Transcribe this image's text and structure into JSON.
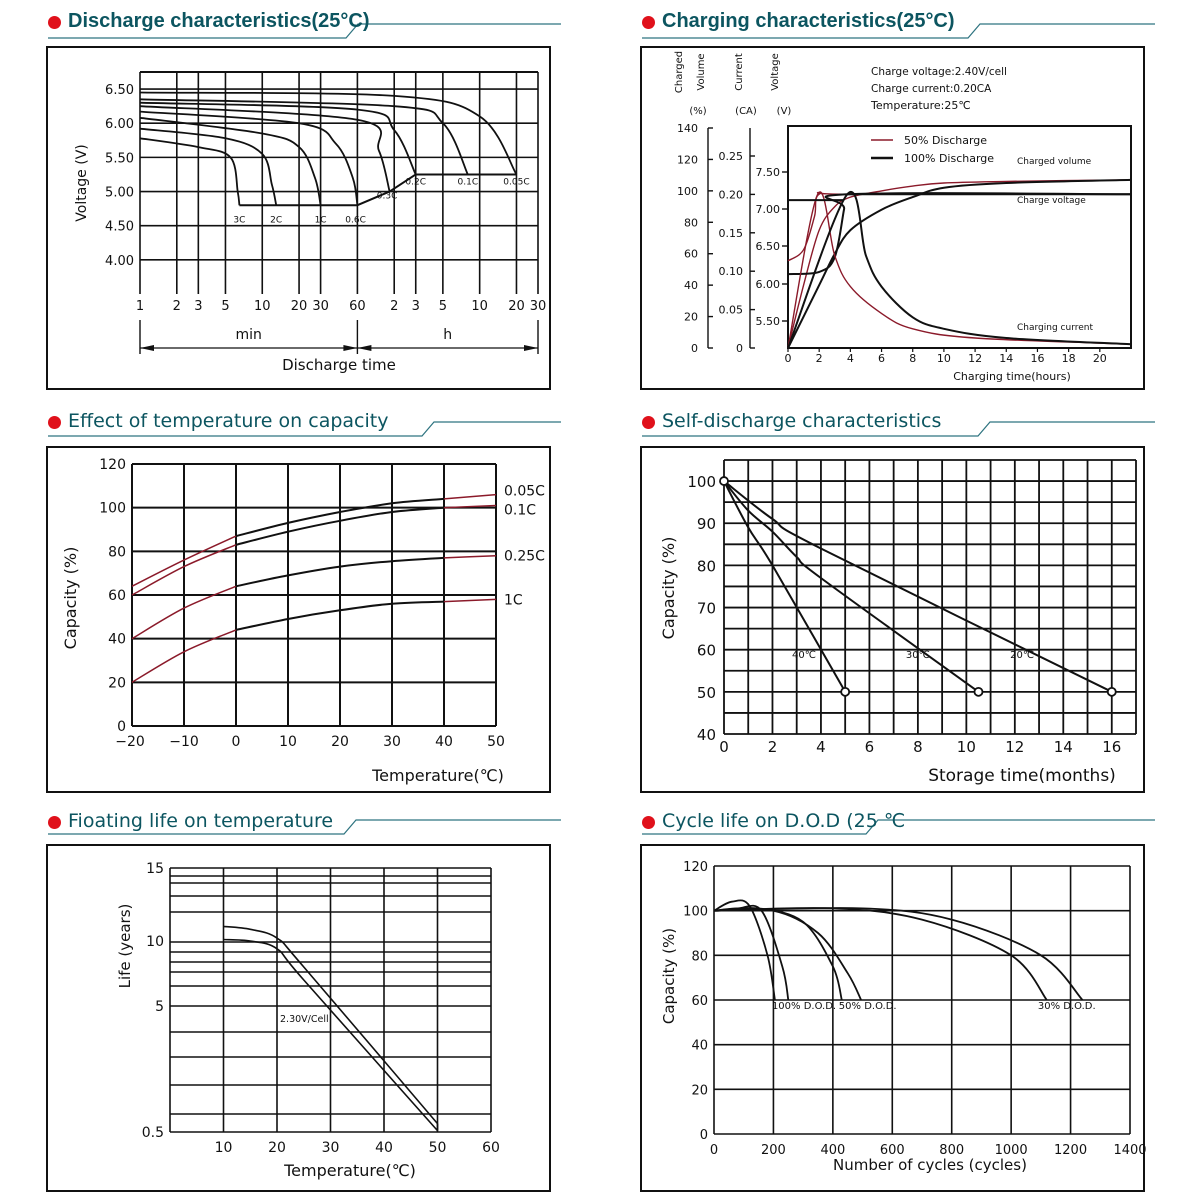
{
  "colors": {
    "bullet": "#e0111b",
    "title": "#0c5560",
    "rule": "#2e7480",
    "grid": "#111111",
    "red_curve": "#8b1a2a",
    "black_curve": "#111111"
  },
  "panels": [
    {
      "title": "Discharge characteristics(25°C)"
    },
    {
      "title": "Charging characteristics(25°C)"
    },
    {
      "title": "Effect of temperature on capacity"
    },
    {
      "title": "Self-discharge characteristics"
    },
    {
      "title": "Fioating life on temperature"
    },
    {
      "title": "Cycle life on D.O.D (25 ℃"
    }
  ],
  "chart_data": [
    {
      "type": "line",
      "title": "Discharge characteristics(25°C)",
      "xlabel": "Discharge time",
      "ylabel": "Voltage (V)",
      "x_scale": "log",
      "x_unit_labels": [
        "min",
        "h"
      ],
      "x_ticks_min": [
        "1",
        "2",
        "3",
        "5",
        "10",
        "20",
        "30",
        "60"
      ],
      "x_ticks_h": [
        "2",
        "3",
        "5",
        "10",
        "20",
        "30"
      ],
      "y_ticks": [
        "6.50",
        "6.00",
        "5.50",
        "5.00",
        "4.50",
        "4.00"
      ],
      "ylim": [
        3.5,
        6.75
      ],
      "series": [
        {
          "name": "3C",
          "end_voltage": 4.8,
          "points_min": [
            [
              1,
              5.78
            ],
            [
              3,
              5.65
            ],
            [
              5.5,
              5.5
            ],
            [
              6.3,
              5.0
            ],
            [
              6.5,
              4.8
            ]
          ]
        },
        {
          "name": "2C",
          "end_voltage": 4.8,
          "points_min": [
            [
              1,
              5.92
            ],
            [
              5,
              5.78
            ],
            [
              10,
              5.55
            ],
            [
              12,
              5.1
            ],
            [
              13,
              4.8
            ]
          ]
        },
        {
          "name": "1C",
          "end_voltage": 4.8,
          "points_min": [
            [
              1,
              6.08
            ],
            [
              10,
              5.85
            ],
            [
              20,
              5.65
            ],
            [
              27,
              5.2
            ],
            [
              30,
              4.8
            ]
          ]
        },
        {
          "name": "0.6C",
          "end_voltage": 4.8,
          "points_min": [
            [
              1,
              6.17
            ],
            [
              20,
              6.0
            ],
            [
              40,
              5.7
            ],
            [
              55,
              5.2
            ],
            [
              60,
              4.8
            ]
          ]
        },
        {
          "name": "0.3C",
          "end_voltage": 5.0,
          "points_min": [
            [
              1,
              6.25
            ],
            [
              60,
              6.05
            ],
            [
              90,
              5.6
            ],
            [
              110,
              5.0
            ]
          ]
        },
        {
          "name": "0.2C",
          "end_voltage": 5.25,
          "points_min": [
            [
              1,
              6.3
            ],
            [
              60,
              6.2
            ],
            [
              120,
              5.9
            ],
            [
              180,
              5.25
            ]
          ]
        },
        {
          "name": "0.1C",
          "end_voltage": 5.25,
          "points_min": [
            [
              1,
              6.35
            ],
            [
              120,
              6.25
            ],
            [
              300,
              6.0
            ],
            [
              480,
              5.25
            ]
          ]
        },
        {
          "name": "0.05C",
          "end_voltage": 5.25,
          "points_min": [
            [
              1,
              6.45
            ],
            [
              120,
              6.4
            ],
            [
              600,
              6.1
            ],
            [
              1200,
              5.25
            ]
          ]
        }
      ]
    },
    {
      "type": "line",
      "title": "Charging characteristics(25°C)",
      "xlabel": "Charging time(hours)",
      "x_ticks": [
        "0",
        "2",
        "4",
        "6",
        "8",
        "10",
        "12",
        "14",
        "16",
        "18",
        "20"
      ],
      "xlim": [
        0,
        22
      ],
      "axes": [
        {
          "label": "Charged Volume",
          "unit": "(%)",
          "ticks": [
            "140",
            "120",
            "100",
            "80",
            "60",
            "40",
            "20",
            "0"
          ],
          "range": [
            0,
            140
          ]
        },
        {
          "label": "Current",
          "unit": "(CA)",
          "ticks": [
            "0.25",
            "0.20",
            "0.15",
            "0.10",
            "0.05",
            "0"
          ],
          "range": [
            0,
            0.25
          ]
        },
        {
          "label": "Voltage",
          "unit": "(V)",
          "ticks": [
            "7.50",
            "7.00",
            "6.50",
            "6.00",
            "5.50"
          ]
        }
      ],
      "notes": [
        "Charge voltage:2.40V/cell",
        "Charge current:0.20CA",
        "Temperature:25℃"
      ],
      "legend": [
        {
          "name": "50% Discharge",
          "color": "#8b1a2a"
        },
        {
          "name": "100% Discharge",
          "color": "#111111"
        }
      ],
      "curve_labels": [
        "Charged volume",
        "Charge voltage",
        "Charging current"
      ],
      "series": [
        {
          "name": "50% Discharge - Charged volume",
          "x": [
            0,
            1,
            2,
            3,
            4,
            6,
            8,
            10,
            14,
            22
          ],
          "y": [
            0,
            40,
            75,
            90,
            96,
            100,
            103,
            105,
            106,
            107
          ]
        },
        {
          "name": "100% Discharge - Charged volume",
          "x": [
            0,
            2,
            3,
            4,
            6,
            8,
            10,
            14,
            22
          ],
          "y": [
            0,
            40,
            60,
            75,
            88,
            96,
            102,
            105,
            107
          ]
        },
        {
          "name": "50% Discharge - Charge voltage",
          "x": [
            0,
            1,
            1.7,
            2,
            4,
            22
          ],
          "y": [
            6.3,
            6.45,
            6.9,
            7.2,
            7.2,
            7.2
          ]
        },
        {
          "name": "100% Discharge - Charge voltage",
          "x": [
            0,
            2,
            3,
            3.6,
            3.8,
            22
          ],
          "y": [
            6.12,
            6.15,
            6.35,
            7.0,
            7.2,
            7.2
          ]
        },
        {
          "name": "50% Discharge - Charging current",
          "x": [
            0,
            1.9,
            3,
            4,
            6,
            8,
            12,
            22
          ],
          "y": [
            0,
            0.2,
            0.12,
            0.08,
            0.045,
            0.025,
            0.013,
            0.005
          ]
        },
        {
          "name": "100% Discharge - Charging current",
          "x": [
            0,
            3.8,
            5,
            6,
            8,
            10,
            14,
            22
          ],
          "y": [
            0,
            0.2,
            0.12,
            0.08,
            0.04,
            0.025,
            0.013,
            0.005
          ]
        }
      ]
    },
    {
      "type": "line",
      "title": "Effect of temperature on capacity",
      "xlabel": "Temperature(℃)",
      "ylabel": "Capacity (%)",
      "x_ticks": [
        "−20",
        "−10",
        "0",
        "10",
        "20",
        "30",
        "40",
        "50"
      ],
      "y_ticks": [
        "120",
        "100",
        "80",
        "60",
        "40",
        "20",
        "0"
      ],
      "xlim": [
        -20,
        50
      ],
      "ylim": [
        0,
        120
      ],
      "series": [
        {
          "name": "0.05C",
          "x": [
            -20,
            -10,
            0,
            10,
            20,
            30,
            40,
            50
          ],
          "y": [
            64,
            76,
            87,
            93,
            98,
            102,
            104,
            106
          ]
        },
        {
          "name": "0.1C",
          "x": [
            -20,
            -10,
            0,
            10,
            20,
            30,
            40,
            50
          ],
          "y": [
            60,
            73,
            83,
            89,
            94,
            98,
            100,
            101
          ]
        },
        {
          "name": "0.25C",
          "x": [
            -20,
            -10,
            0,
            10,
            20,
            30,
            40,
            50
          ],
          "y": [
            40,
            54,
            64,
            69,
            73,
            75.5,
            77,
            78
          ]
        },
        {
          "name": "1C",
          "x": [
            -20,
            -10,
            0,
            10,
            20,
            30,
            40,
            50
          ],
          "y": [
            20,
            34,
            44,
            49,
            53,
            56,
            57,
            58
          ]
        }
      ]
    },
    {
      "type": "line",
      "title": "Self-discharge characteristics",
      "xlabel": "Storage time(months)",
      "ylabel": "Capacity (%)",
      "x_ticks": [
        "0",
        "2",
        "4",
        "6",
        "8",
        "10",
        "12",
        "14",
        "16"
      ],
      "y_ticks": [
        "100",
        "90",
        "80",
        "70",
        "60",
        "50",
        "40"
      ],
      "xlim": [
        0,
        17
      ],
      "ylim": [
        40,
        105
      ],
      "series": [
        {
          "name": "40℃",
          "x": [
            0,
            1,
            2,
            5
          ],
          "y": [
            100,
            89,
            80,
            50
          ]
        },
        {
          "name": "30℃",
          "x": [
            0,
            1,
            2,
            3,
            4,
            10.5
          ],
          "y": [
            100,
            93,
            88,
            82,
            77,
            50
          ]
        },
        {
          "name": "20℃",
          "x": [
            0,
            2,
            4,
            16
          ],
          "y": [
            100,
            91,
            84,
            50
          ]
        }
      ]
    },
    {
      "type": "line",
      "title": "Fioating life on temperature",
      "xlabel": "Temperature(℃)",
      "ylabel": "Life (years)",
      "x_ticks": [
        "10",
        "20",
        "30",
        "40",
        "50",
        "60"
      ],
      "y_ticks": [
        "15",
        "10",
        "5",
        "0.5"
      ],
      "xlim": [
        0,
        60
      ],
      "annotation": "2.30V/Cell",
      "series": [
        {
          "name": "upper bound",
          "x": [
            10,
            15,
            20,
            25,
            50
          ],
          "y": [
            11,
            10.8,
            10.2,
            8,
            0.8
          ]
        },
        {
          "name": "lower bound",
          "x": [
            10,
            15,
            20,
            25,
            50
          ],
          "y": [
            10.1,
            10,
            9.4,
            7,
            0.55
          ]
        }
      ]
    },
    {
      "type": "line",
      "title": "Cycle life on D.O.D (25 ℃",
      "xlabel": "Number of cycles (cycles)",
      "ylabel": "Capacity (%)",
      "x_ticks": [
        "0",
        "200",
        "400",
        "600",
        "800",
        "1000",
        "1200",
        "1400"
      ],
      "y_ticks": [
        "120",
        "100",
        "80",
        "60",
        "40",
        "20",
        "0"
      ],
      "xlim": [
        0,
        1400
      ],
      "ylim": [
        0,
        120
      ],
      "series_labels": [
        "100% D.O.D.",
        "50% D.O.D.",
        "30% D.O.D."
      ],
      "series": [
        {
          "name": "100% D.O.D. (a)",
          "x": [
            0,
            60,
            120,
            180,
            205
          ],
          "y": [
            100,
            104,
            102,
            80,
            60
          ]
        },
        {
          "name": "100% D.O.D. (b)",
          "x": [
            0,
            80,
            160,
            230,
            250
          ],
          "y": [
            100,
            101,
            100,
            75,
            60
          ]
        },
        {
          "name": "50% D.O.D. (a)",
          "x": [
            0,
            150,
            300,
            400,
            430
          ],
          "y": [
            100,
            101,
            95,
            75,
            60
          ]
        },
        {
          "name": "50% D.O.D. (b)",
          "x": [
            0,
            200,
            350,
            450,
            495
          ],
          "y": [
            100,
            100,
            90,
            72,
            60
          ]
        },
        {
          "name": "30% D.O.D. (a)",
          "x": [
            0,
            400,
            700,
            1000,
            1120
          ],
          "y": [
            100,
            101,
            96,
            80,
            60
          ]
        },
        {
          "name": "30% D.O.D. (b)",
          "x": [
            0,
            500,
            800,
            1100,
            1240
          ],
          "y": [
            100,
            101,
            96,
            80,
            60
          ]
        }
      ]
    }
  ]
}
